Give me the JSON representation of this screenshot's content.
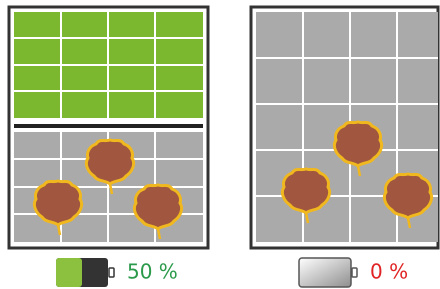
{
  "panels": [
    {
      "label": "50 %"
    },
    {
      "label": "0 %"
    }
  ]
}
